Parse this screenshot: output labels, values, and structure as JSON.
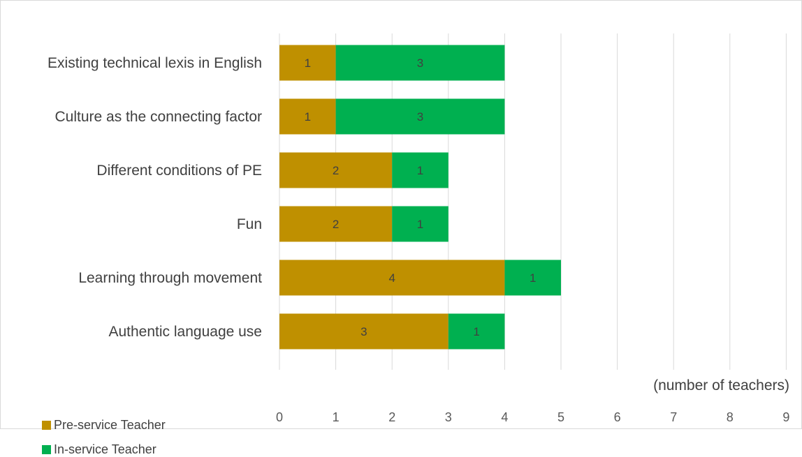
{
  "chart_data": {
    "type": "bar",
    "orientation": "horizontal",
    "stacked": true,
    "categories": [
      "Existing technical lexis in English",
      "Culture as the connecting factor",
      "Different conditions of PE",
      "Fun",
      "Learning through movement",
      "Authentic language use"
    ],
    "series": [
      {
        "name": "Pre-service Teacher",
        "color": "#bf9000",
        "values": [
          1,
          1,
          2,
          2,
          4,
          3
        ]
      },
      {
        "name": "In-service Teacher",
        "color": "#00b050",
        "values": [
          3,
          3,
          1,
          1,
          1,
          1
        ]
      }
    ],
    "xlim": [
      0,
      9
    ],
    "xticks": [
      "0",
      "1",
      "2",
      "3",
      "4",
      "5",
      "6",
      "7",
      "8",
      "9"
    ],
    "xlabel": "(number of teachers)",
    "grid": true,
    "legend_position": "bottom-left"
  }
}
